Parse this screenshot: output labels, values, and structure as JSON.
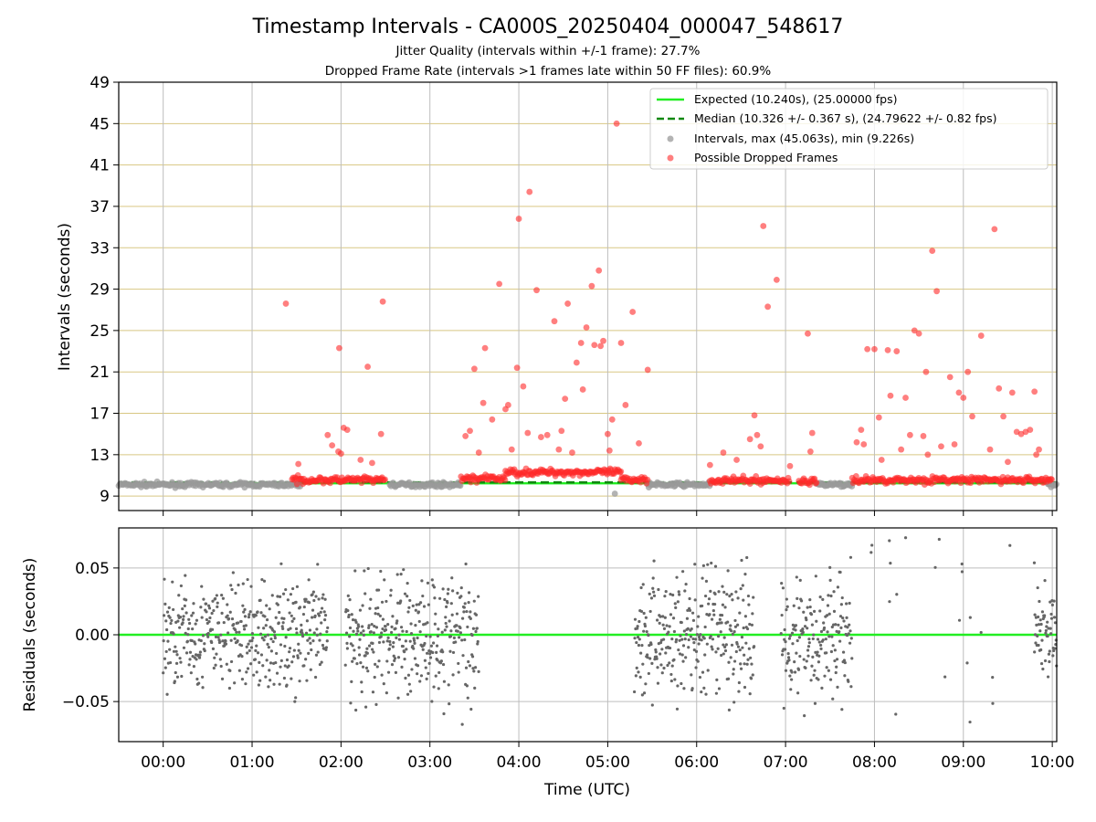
{
  "chart_data": [
    {
      "type": "scatter",
      "title": "Timestamp Intervals - CA000S_20250404_000047_548617",
      "subtitles": [
        "Jitter Quality (intervals within +/-1 frame): 27.7%",
        "Dropped Frame Rate (intervals >1 frames late within 50 FF files): 60.9%"
      ],
      "xlabel": "",
      "ylabel": "Intervals (seconds)",
      "xlim": [
        -0.5,
        10.05
      ],
      "ylim": [
        7.6,
        49
      ],
      "y_ticks": [
        "9",
        "13",
        "17",
        "21",
        "25",
        "29",
        "33",
        "37",
        "41",
        "45",
        "49"
      ],
      "grid": true,
      "legend_position": "top-right",
      "legend": [
        "Expected (10.240s), (25.00000 fps)",
        "Median (10.326 +/- 0.367 s), (24.79622 +/- 0.82 fps)",
        "Intervals, max (45.063s), min (9.226s)",
        "Possible Dropped Frames"
      ],
      "reference_lines": [
        {
          "name": "Expected",
          "y": 10.24,
          "style": "solid",
          "color": "#22ee22"
        },
        {
          "name": "Median",
          "y": 10.326,
          "style": "dashed",
          "color": "#118811"
        }
      ],
      "series": [
        {
          "name": "Possible Dropped Frames",
          "color": "#ff2a2a",
          "points_hours_seconds": [
            [
              1.38,
              27.6
            ],
            [
              1.52,
              12.1
            ],
            [
              1.85,
              14.9
            ],
            [
              1.9,
              13.9
            ],
            [
              1.97,
              13.3
            ],
            [
              2.0,
              13.1
            ],
            [
              1.98,
              23.3
            ],
            [
              2.03,
              15.6
            ],
            [
              2.07,
              15.4
            ],
            [
              2.22,
              12.5
            ],
            [
              2.3,
              21.5
            ],
            [
              2.35,
              12.2
            ],
            [
              2.45,
              15.0
            ],
            [
              2.47,
              27.8
            ],
            [
              3.4,
              14.8
            ],
            [
              3.45,
              15.3
            ],
            [
              3.5,
              21.3
            ],
            [
              3.55,
              13.2
            ],
            [
              3.6,
              18.0
            ],
            [
              3.62,
              23.3
            ],
            [
              3.7,
              16.4
            ],
            [
              3.78,
              29.5
            ],
            [
              3.85,
              17.4
            ],
            [
              3.88,
              17.8
            ],
            [
              3.92,
              13.5
            ],
            [
              3.98,
              21.4
            ],
            [
              4.0,
              35.8
            ],
            [
              4.05,
              19.6
            ],
            [
              4.12,
              38.4
            ],
            [
              4.1,
              15.1
            ],
            [
              4.2,
              28.9
            ],
            [
              4.25,
              14.7
            ],
            [
              4.32,
              14.9
            ],
            [
              4.4,
              25.9
            ],
            [
              4.45,
              13.5
            ],
            [
              4.48,
              15.3
            ],
            [
              4.52,
              18.4
            ],
            [
              4.55,
              27.6
            ],
            [
              4.6,
              13.2
            ],
            [
              4.65,
              21.9
            ],
            [
              4.7,
              23.8
            ],
            [
              4.72,
              19.3
            ],
            [
              4.76,
              25.3
            ],
            [
              4.82,
              29.3
            ],
            [
              4.85,
              23.6
            ],
            [
              4.9,
              30.8
            ],
            [
              4.92,
              23.5
            ],
            [
              4.95,
              24.0
            ],
            [
              5.0,
              15.0
            ],
            [
              5.02,
              13.4
            ],
            [
              5.05,
              16.4
            ],
            [
              5.1,
              45.0
            ],
            [
              5.15,
              23.8
            ],
            [
              5.2,
              17.8
            ],
            [
              5.28,
              26.8
            ],
            [
              5.35,
              14.1
            ],
            [
              5.45,
              21.2
            ],
            [
              6.15,
              12.0
            ],
            [
              6.3,
              13.2
            ],
            [
              6.45,
              12.5
            ],
            [
              6.6,
              14.5
            ],
            [
              6.65,
              16.8
            ],
            [
              6.68,
              14.9
            ],
            [
              6.72,
              13.8
            ],
            [
              6.75,
              35.1
            ],
            [
              6.8,
              27.3
            ],
            [
              6.9,
              29.9
            ],
            [
              7.05,
              11.9
            ],
            [
              7.25,
              24.7
            ],
            [
              7.28,
              13.3
            ],
            [
              7.3,
              15.1
            ],
            [
              7.8,
              14.2
            ],
            [
              7.85,
              15.4
            ],
            [
              7.88,
              14.0
            ],
            [
              7.92,
              23.2
            ],
            [
              8.0,
              23.2
            ],
            [
              8.05,
              16.6
            ],
            [
              8.08,
              12.5
            ],
            [
              8.15,
              23.1
            ],
            [
              8.18,
              18.7
            ],
            [
              8.25,
              23.0
            ],
            [
              8.3,
              13.5
            ],
            [
              8.35,
              18.5
            ],
            [
              8.4,
              14.9
            ],
            [
              8.45,
              25.0
            ],
            [
              8.5,
              24.7
            ],
            [
              8.55,
              14.8
            ],
            [
              8.58,
              21.0
            ],
            [
              8.6,
              13.0
            ],
            [
              8.65,
              32.7
            ],
            [
              8.7,
              28.8
            ],
            [
              8.75,
              13.8
            ],
            [
              8.85,
              20.5
            ],
            [
              8.9,
              14.0
            ],
            [
              8.95,
              19.0
            ],
            [
              9.0,
              18.5
            ],
            [
              9.05,
              21.0
            ],
            [
              9.1,
              16.7
            ],
            [
              9.2,
              24.5
            ],
            [
              9.3,
              13.5
            ],
            [
              9.35,
              34.8
            ],
            [
              9.4,
              19.4
            ],
            [
              9.45,
              16.7
            ],
            [
              9.5,
              12.3
            ],
            [
              9.55,
              19.0
            ],
            [
              9.6,
              15.2
            ],
            [
              9.65,
              15.0
            ],
            [
              9.7,
              15.2
            ],
            [
              9.75,
              15.4
            ],
            [
              9.8,
              19.1
            ],
            [
              9.82,
              13.0
            ],
            [
              9.85,
              13.5
            ]
          ]
        }
      ]
    },
    {
      "type": "scatter",
      "title": "",
      "xlabel": "Time (UTC)",
      "ylabel": "Residuals (seconds)",
      "xlim": [
        -0.5,
        10.05
      ],
      "ylim": [
        -0.08,
        0.08
      ],
      "y_ticks": [
        "0.05",
        "0.00",
        "−0.05"
      ],
      "x_ticks": [
        "00:00",
        "01:00",
        "02:00",
        "03:00",
        "04:00",
        "05:00",
        "06:00",
        "07:00",
        "08:00",
        "09:00",
        "10:00"
      ],
      "grid": true,
      "reference_lines": [
        {
          "name": "zero",
          "y": 0.0,
          "style": "solid",
          "color": "#22ee22"
        }
      ]
    }
  ]
}
